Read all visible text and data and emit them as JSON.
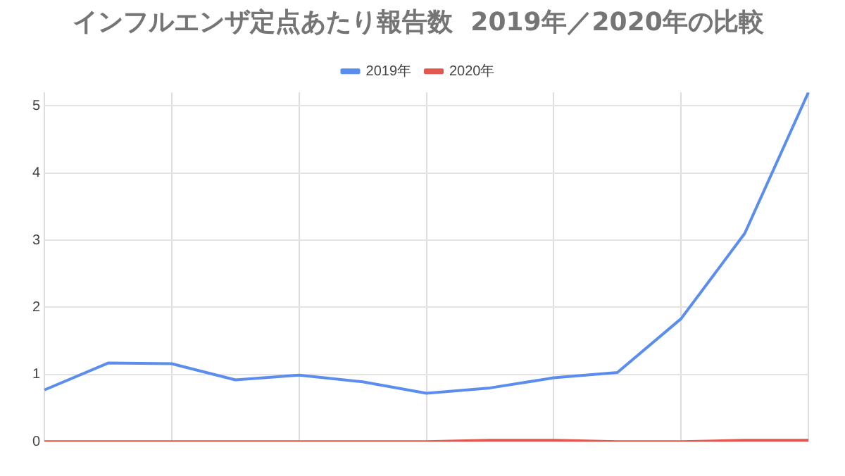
{
  "chart_data": {
    "type": "line",
    "title": "インフルエンザ定点あたり報告数  2019年／2020年の比較",
    "categories": [
      null,
      null,
      null,
      null,
      null,
      null,
      null,
      null,
      null,
      null,
      null,
      null,
      null
    ],
    "series": [
      {
        "name": "2019年",
        "color": "#5b8def",
        "values": [
          0.77,
          1.17,
          1.16,
          0.92,
          0.99,
          0.89,
          0.72,
          0.8,
          0.95,
          1.03,
          1.83,
          3.1,
          5.2
        ]
      },
      {
        "name": "2020年",
        "color": "#e0584f",
        "values": [
          0,
          0,
          0,
          0,
          0,
          0,
          0,
          0.02,
          0.02,
          0,
          0,
          0.02,
          0.02
        ]
      }
    ],
    "ylim": [
      0,
      5.2
    ],
    "yticks": [
      0,
      1,
      2,
      3,
      4,
      5
    ],
    "grid": true,
    "legend": "top",
    "marker": "none",
    "line_style": "solid"
  }
}
